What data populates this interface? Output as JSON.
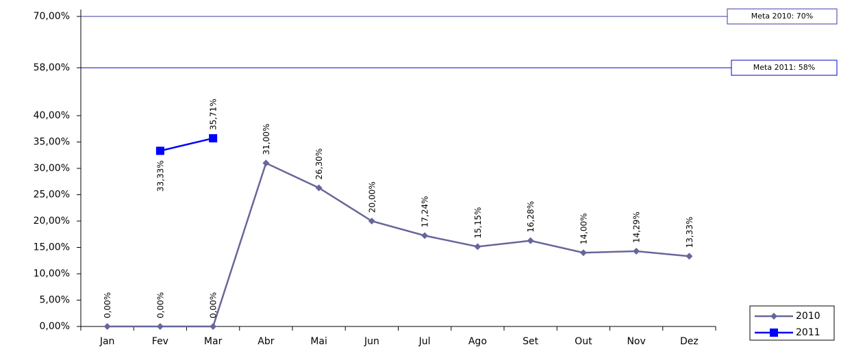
{
  "chart_data": {
    "type": "line",
    "categories": [
      "Jan",
      "Fev",
      "Mar",
      "Abr",
      "Mai",
      "Jun",
      "Jul",
      "Ago",
      "Set",
      "Out",
      "Nov",
      "Dez"
    ],
    "series": [
      {
        "name": "2010",
        "color": "#66669a",
        "marker": "diamond",
        "values": [
          0,
          0,
          0,
          31,
          26.3,
          20,
          17.24,
          15.15,
          16.28,
          14,
          14.29,
          13.33
        ],
        "value_labels": [
          "0,00%",
          "0,00%",
          "0,00%",
          "31,00%",
          "26,30%",
          "20,00%",
          "17,24%",
          "15,15%",
          "16,28%",
          "14,00%",
          "14,29%",
          "13,33%"
        ]
      },
      {
        "name": "2011",
        "color": "#0000ff",
        "marker": "square",
        "values": [
          null,
          33.33,
          35.71,
          null,
          null,
          null,
          null,
          null,
          null,
          null,
          null,
          null
        ],
        "value_labels": [
          null,
          "33,33%",
          "35,71%",
          null,
          null,
          null,
          null,
          null,
          null,
          null,
          null,
          null
        ]
      }
    ],
    "ylim": [
      0,
      70
    ],
    "yticks": [
      {
        "value": 0,
        "label": "0,00%"
      },
      {
        "value": 5,
        "label": "5,00%"
      },
      {
        "value": 10,
        "label": "10,00%"
      },
      {
        "value": 15,
        "label": "15,00%"
      },
      {
        "value": 20,
        "label": "20,00%"
      },
      {
        "value": 25,
        "label": "25,00%"
      },
      {
        "value": 30,
        "label": "30,00%"
      },
      {
        "value": 35,
        "label": "35,00%"
      },
      {
        "value": 40,
        "label": "40,00%"
      },
      {
        "value": 58,
        "label": "58,00%"
      },
      {
        "value": 70,
        "label": "70,00%"
      }
    ],
    "reference_lines": [
      {
        "value": 70,
        "label": "Meta 2010: 70%",
        "color": "#3a3aa0"
      },
      {
        "value": 58,
        "label": "Meta 2011: 58%",
        "color": "#0000cc"
      }
    ],
    "legend": "lower right"
  }
}
